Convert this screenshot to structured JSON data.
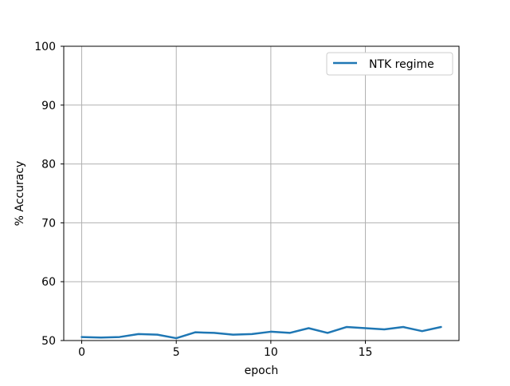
{
  "chart_data": {
    "type": "line",
    "title": "",
    "xlabel": "epoch",
    "ylabel": "% Accuracy",
    "xlim": [
      -0.95,
      19.95
    ],
    "ylim": [
      50,
      100
    ],
    "xticks": [
      0,
      5,
      10,
      15
    ],
    "yticks": [
      50,
      60,
      70,
      80,
      90,
      100
    ],
    "grid": true,
    "legend_position": "top-right",
    "series": [
      {
        "name": "NTK regime",
        "color": "#1f77b4",
        "x": [
          0,
          1,
          2,
          3,
          4,
          5,
          6,
          7,
          8,
          9,
          10,
          11,
          12,
          13,
          14,
          15,
          16,
          17,
          18,
          19
        ],
        "y": [
          50.6,
          50.5,
          50.6,
          51.1,
          51.0,
          50.4,
          51.4,
          51.3,
          51.0,
          51.1,
          51.5,
          51.3,
          52.1,
          51.3,
          52.3,
          52.1,
          51.9,
          52.3,
          51.6,
          52.3
        ]
      }
    ]
  }
}
